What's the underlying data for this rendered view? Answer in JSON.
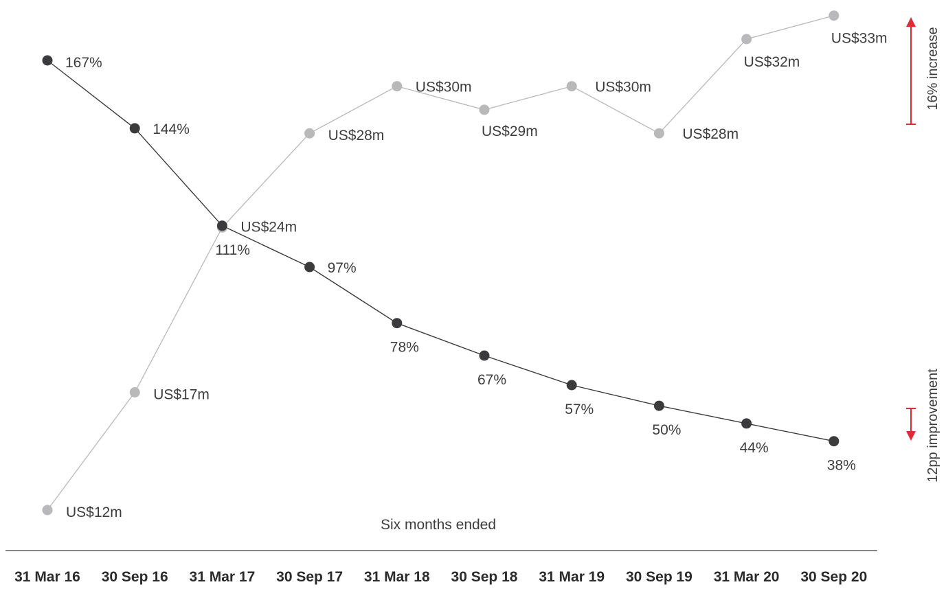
{
  "chart_data": {
    "type": "line",
    "title": "",
    "xlabel": "Six months ended",
    "ylabel": "",
    "grid": false,
    "categories": [
      "31 Mar 16",
      "30 Sep 16",
      "31 Mar 17",
      "30 Sep 17",
      "31 Mar 18",
      "30 Sep 18",
      "31 Mar 19",
      "30 Sep 19",
      "31 Mar 20",
      "30 Sep 20"
    ],
    "series": [
      {
        "key": "revenue",
        "color": "#b9b9bb",
        "values": [
          12,
          17,
          24,
          28,
          30,
          29,
          30,
          28,
          32,
          33
        ],
        "labels": [
          "US$12m",
          "US$17m",
          "US$24m",
          "US$28m",
          "US$30m",
          "US$29m",
          "US$30m",
          "US$28m",
          "US$32m",
          "US$33m"
        ]
      },
      {
        "key": "ratio",
        "color": "#3b3b3d",
        "values": [
          167,
          144,
          111,
          97,
          78,
          67,
          57,
          50,
          44,
          38
        ],
        "labels": [
          "167%",
          "144%",
          "111%",
          "97%",
          "78%",
          "67%",
          "57%",
          "50%",
          "44%",
          "38%"
        ]
      }
    ],
    "annotations": [
      {
        "key": "increase",
        "text": "16% increase",
        "color": "#e02a36",
        "direction": "up"
      },
      {
        "key": "improvement",
        "text": "12pp improvement",
        "color": "#e02a36",
        "direction": "down"
      }
    ]
  }
}
